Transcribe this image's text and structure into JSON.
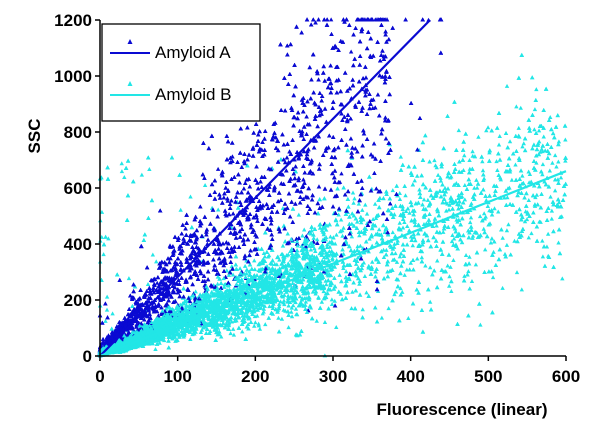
{
  "chart_data": {
    "type": "scatter",
    "title": "",
    "xlabel": "Fluorescence (linear)",
    "ylabel": "SSC",
    "xlim": [
      0,
      600
    ],
    "ylim": [
      0,
      1200
    ],
    "xticks": [
      0,
      100,
      200,
      300,
      400,
      500,
      600
    ],
    "yticks": [
      0,
      200,
      400,
      600,
      800,
      1000,
      1200
    ],
    "grid": false,
    "legend_position": "top-left",
    "series": [
      {
        "name": "Amyloid A",
        "color": "#0a0ad2",
        "marker": "triangle",
        "fit_line": {
          "x": [
            0,
            425
          ],
          "y": [
            0,
            1200
          ]
        },
        "approx_points": 5000,
        "x_extent": [
          0,
          440
        ],
        "typical_slope": 2.7
      },
      {
        "name": "Amyloid B",
        "color": "#22e6e6",
        "marker": "triangle",
        "fit_line": {
          "x": [
            0,
            600
          ],
          "y": [
            0,
            660
          ]
        },
        "approx_points": 6000,
        "x_extent": [
          0,
          600
        ],
        "typical_slope": 1.1
      }
    ]
  }
}
